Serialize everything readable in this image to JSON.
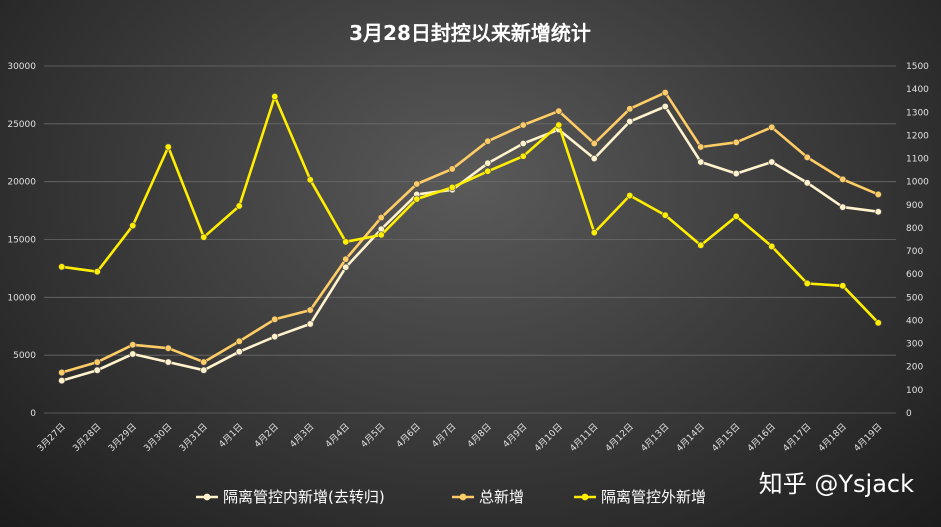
{
  "chart_data": {
    "type": "line",
    "title": "3月28日封控以来新增统计",
    "categories": [
      "3月27日",
      "3月28日",
      "3月29日",
      "3月30日",
      "3月31日",
      "4月1日",
      "4月2日",
      "4月3日",
      "4月4日",
      "4月5日",
      "4月6日",
      "4月7日",
      "4月8日",
      "4月9日",
      "4月10日",
      "4月11日",
      "4月12日",
      "4月13日",
      "4月14日",
      "4月15日",
      "4月16日",
      "4月17日",
      "4月18日",
      "4月19日"
    ],
    "y_left": {
      "ticks": [
        "0",
        "5000",
        "10000",
        "15000",
        "20000",
        "25000",
        "30000"
      ],
      "min": 0,
      "max": 30000
    },
    "y_right": {
      "ticks": [
        "0",
        "100",
        "200",
        "300",
        "400",
        "500",
        "600",
        "700",
        "800",
        "900",
        "1000",
        "1100",
        "1200",
        "1300",
        "1400",
        "1500"
      ],
      "min": 0,
      "max": 1500
    },
    "grid": true,
    "legend_position": "bottom",
    "series": [
      {
        "name": "隔离管控内新增(去转归)",
        "axis": "left",
        "color": "#fff2cc",
        "values": [
          2800,
          3700,
          5100,
          4400,
          3700,
          5300,
          6600,
          7700,
          12600,
          15900,
          18900,
          19300,
          21600,
          23300,
          24500,
          22000,
          25200,
          26500,
          21700,
          20700,
          21700,
          19900,
          17800,
          17400
        ]
      },
      {
        "name": "总新增",
        "axis": "left",
        "color": "#ffcc66",
        "values": [
          3500,
          4400,
          5900,
          5600,
          4400,
          6200,
          8100,
          8900,
          13300,
          16900,
          19800,
          21100,
          23500,
          24900,
          26100,
          23300,
          26300,
          27700,
          23000,
          23400,
          24700,
          22100,
          20200,
          18900
        ]
      },
      {
        "name": "隔离管控外新增",
        "axis": "right",
        "color": "#ffee00",
        "values": [
          632,
          611,
          810,
          1150,
          760,
          895,
          1368,
          1008,
          740,
          770,
          925,
          975,
          1045,
          1110,
          1245,
          780,
          940,
          855,
          725,
          850,
          720,
          560,
          550,
          390
        ]
      }
    ]
  },
  "watermark": "知乎 @Ysjack"
}
